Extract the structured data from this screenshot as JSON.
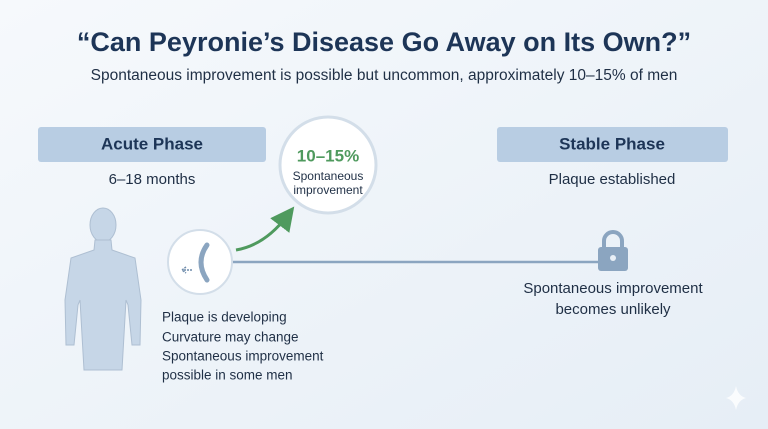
{
  "title": "“Can Peyronie’s Disease Go Away on Its Own?”",
  "subtitle": "Spontaneous improvement is possible but uncommon, approximately 10–15% of men",
  "acute_phase": {
    "label": "Acute Phase",
    "duration": "6–18 months",
    "notes": [
      "Plaque is developing",
      "Curvature may change",
      "Spontaneous improvement",
      "possible in some men"
    ]
  },
  "improvement": {
    "rate": "10–15%",
    "caption": [
      "Spontaneous",
      "improvement"
    ]
  },
  "stable_phase": {
    "label": "Stable Phase",
    "status": "Plaque established",
    "notes": [
      "Spontaneous improvement",
      "becomes unlikely"
    ]
  }
}
